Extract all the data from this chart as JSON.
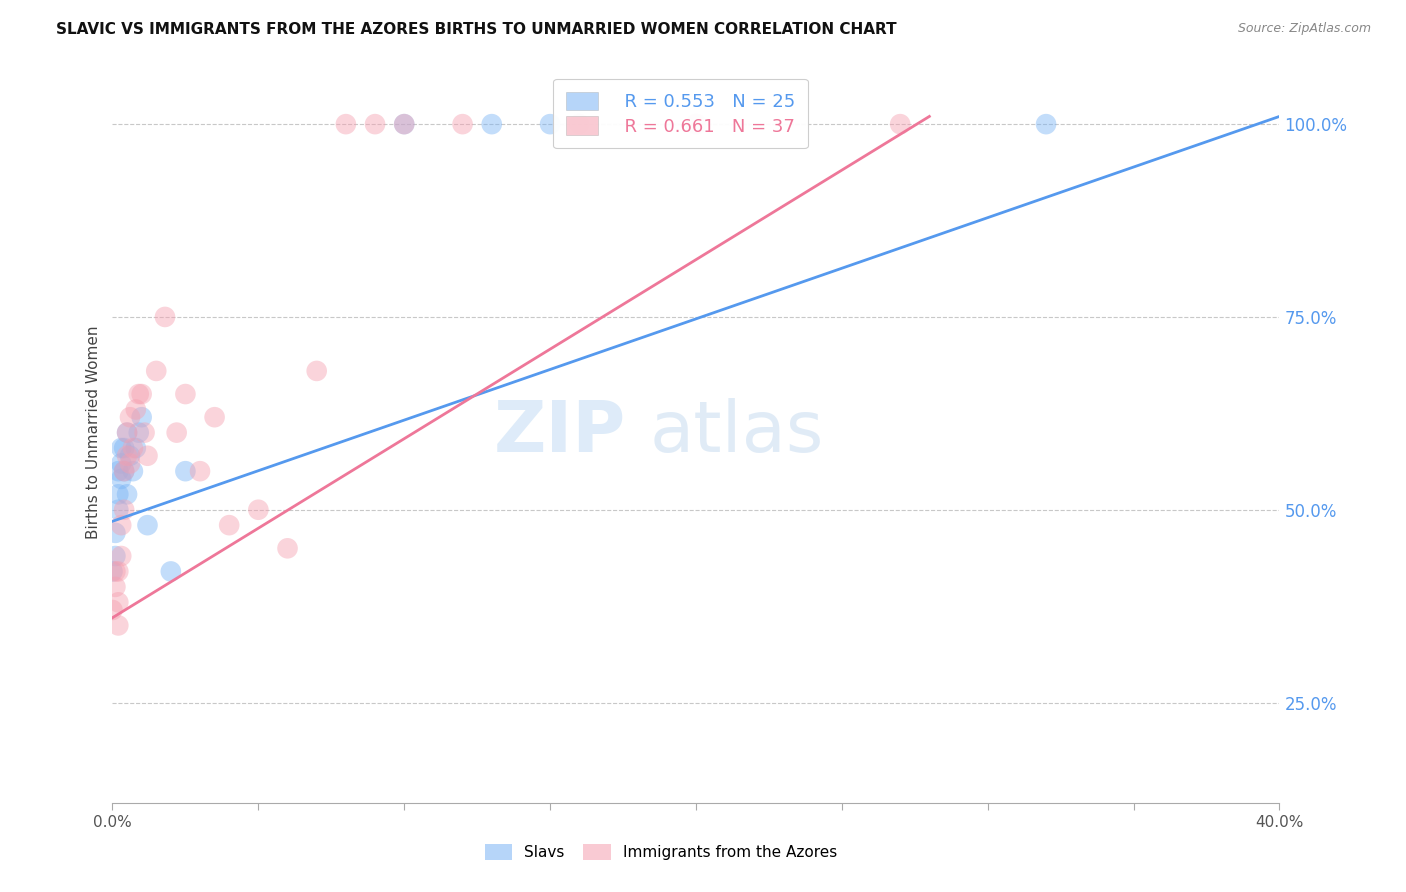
{
  "title": "SLAVIC VS IMMIGRANTS FROM THE AZORES BIRTHS TO UNMARRIED WOMEN CORRELATION CHART",
  "source": "Source: ZipAtlas.com",
  "ylabel": "Births to Unmarried Women",
  "xlim": [
    0.0,
    0.4
  ],
  "ylim": [
    0.12,
    1.08
  ],
  "xticks": [
    0.0,
    0.05,
    0.1,
    0.15,
    0.2,
    0.25,
    0.3,
    0.35,
    0.4
  ],
  "xticklabels": [
    "0.0%",
    "",
    "",
    "",
    "",
    "",
    "",
    "",
    "40.0%"
  ],
  "yticks_right": [
    0.25,
    0.5,
    0.75,
    1.0
  ],
  "ytick_right_labels": [
    "25.0%",
    "50.0%",
    "75.0%",
    "100.0%"
  ],
  "grid_color": "#c8c8c8",
  "background_color": "#ffffff",
  "slavs_color": "#7ab4f5",
  "azores_color": "#f5a0b0",
  "slavs_line_color": "#5599ee",
  "azores_line_color": "#ee7799",
  "legend_R_slavs": "R = 0.553",
  "legend_N_slavs": "N = 25",
  "legend_R_azores": "R = 0.661",
  "legend_N_azores": "N = 37",
  "legend_label_slavs": "Slavs",
  "legend_label_azores": "Immigrants from the Azores",
  "slavs_x": [
    0.0,
    0.001,
    0.001,
    0.002,
    0.002,
    0.002,
    0.003,
    0.003,
    0.003,
    0.004,
    0.004,
    0.005,
    0.005,
    0.006,
    0.007,
    0.008,
    0.009,
    0.01,
    0.012,
    0.02,
    0.025,
    0.1,
    0.13,
    0.15,
    0.32
  ],
  "slavs_y": [
    0.42,
    0.44,
    0.47,
    0.5,
    0.52,
    0.55,
    0.54,
    0.56,
    0.58,
    0.55,
    0.58,
    0.52,
    0.6,
    0.57,
    0.55,
    0.58,
    0.6,
    0.62,
    0.48,
    0.42,
    0.55,
    1.0,
    1.0,
    1.0,
    1.0
  ],
  "azores_x": [
    0.0,
    0.001,
    0.001,
    0.002,
    0.002,
    0.002,
    0.003,
    0.003,
    0.004,
    0.004,
    0.005,
    0.005,
    0.006,
    0.006,
    0.007,
    0.008,
    0.009,
    0.01,
    0.011,
    0.012,
    0.015,
    0.018,
    0.022,
    0.025,
    0.03,
    0.035,
    0.04,
    0.05,
    0.06,
    0.07,
    0.08,
    0.09,
    0.1,
    0.12,
    0.16,
    0.2,
    0.27
  ],
  "azores_y": [
    0.37,
    0.4,
    0.42,
    0.35,
    0.38,
    0.42,
    0.44,
    0.48,
    0.5,
    0.55,
    0.57,
    0.6,
    0.56,
    0.62,
    0.58,
    0.63,
    0.65,
    0.65,
    0.6,
    0.57,
    0.68,
    0.75,
    0.6,
    0.65,
    0.55,
    0.62,
    0.48,
    0.5,
    0.45,
    0.68,
    1.0,
    1.0,
    1.0,
    1.0,
    1.0,
    1.0,
    1.0
  ],
  "slavs_line_x0": 0.0,
  "slavs_line_y0": 0.485,
  "slavs_line_x1": 0.4,
  "slavs_line_y1": 1.01,
  "azores_line_x0": 0.0,
  "azores_line_y0": 0.36,
  "azores_line_x1": 0.28,
  "azores_line_y1": 1.01
}
